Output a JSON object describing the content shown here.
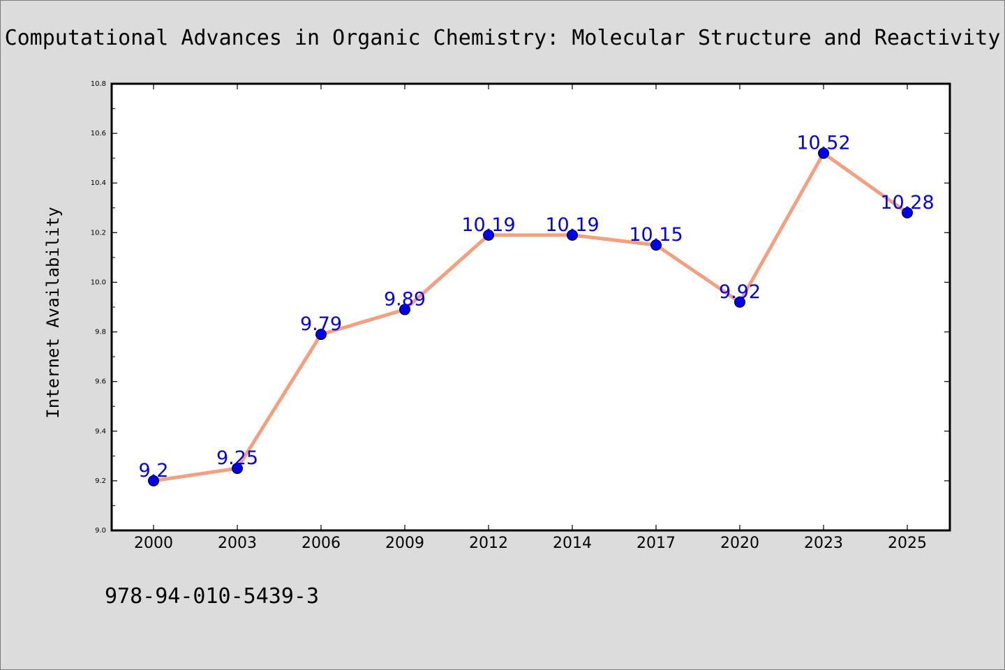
{
  "chart_data": {
    "type": "line",
    "title": "Computational Advances in Organic Chemistry: Molecular Structure and Reactivity",
    "xlabel": "",
    "ylabel": "Internet Availability",
    "categories": [
      "2000",
      "2003",
      "2006",
      "2009",
      "2012",
      "2014",
      "2017",
      "2020",
      "2023",
      "2025"
    ],
    "series": [
      {
        "values": [
          9.2,
          9.25,
          9.79,
          9.89,
          10.19,
          10.19,
          10.15,
          9.92,
          10.52,
          10.28
        ],
        "line_color": "#f4a07e",
        "marker_color": "#0000ee",
        "label_color": "#0000ee"
      }
    ],
    "data_labels": [
      "9.2",
      "9.25",
      "9.79",
      "9.89",
      "10.19",
      "10.19",
      "10.15",
      "9.92",
      "10.52",
      "10.28"
    ],
    "ylim": [
      9.0,
      10.8
    ],
    "yticks": [
      "9.0",
      "9.2",
      "9.4",
      "9.6",
      "9.8",
      "10.0",
      "10.2",
      "10.4",
      "10.6",
      "10.8"
    ],
    "grid": false,
    "legend": "none"
  },
  "footer_text": "978-94-010-5439-3",
  "colors": {
    "background": "#dcdcdc",
    "plot_background": "#ffffff",
    "axis": "#000000"
  }
}
